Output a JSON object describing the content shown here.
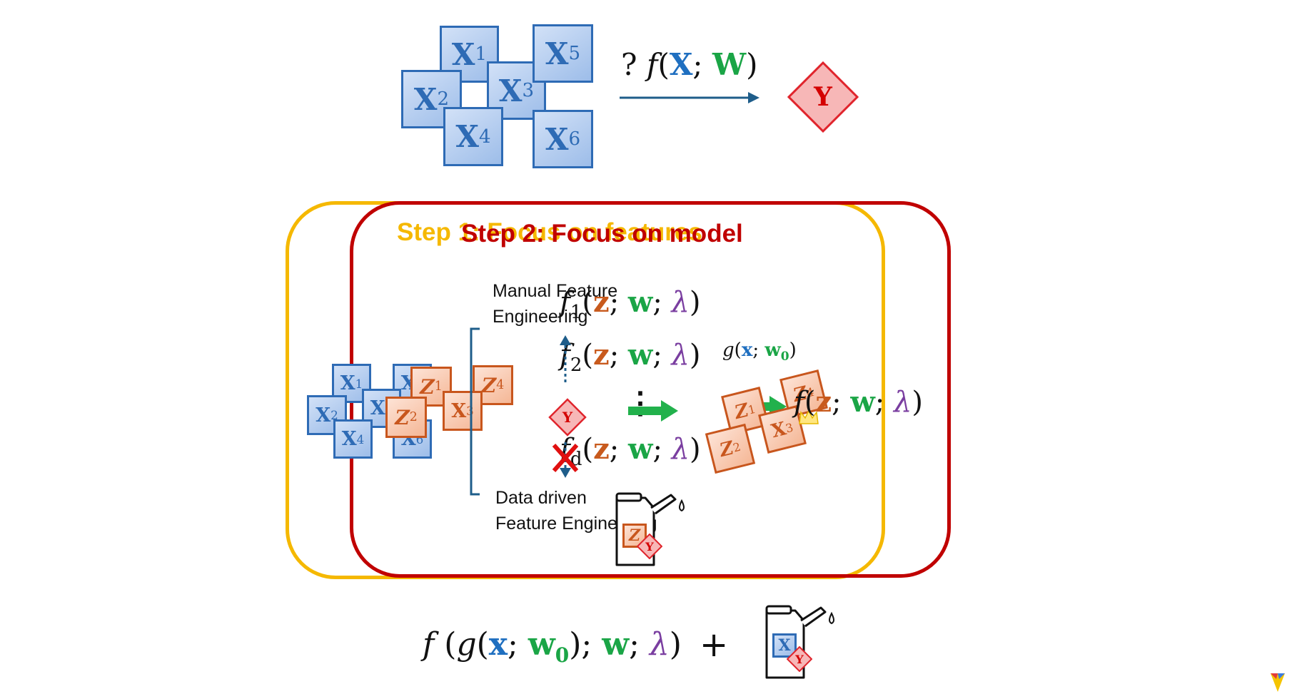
{
  "top": {
    "x_boxes": [
      {
        "var": "X",
        "sub": "1"
      },
      {
        "var": "X",
        "sub": "2"
      },
      {
        "var": "X",
        "sub": "3"
      },
      {
        "var": "X",
        "sub": "4"
      },
      {
        "var": "X",
        "sub": "5"
      },
      {
        "var": "X",
        "sub": "6"
      }
    ],
    "mapping": {
      "q": "?",
      "f": "f",
      "lp": "(",
      "x": "X",
      "semi": ";",
      "w": "W",
      "rp": ")"
    },
    "target": "Y"
  },
  "panel": {
    "step1_title": "Step 1: Focus on features",
    "step2_title": "Step 2: Focus on model",
    "left_x": [
      {
        "var": "X",
        "sub": "1"
      },
      {
        "var": "X",
        "sub": "2"
      },
      {
        "var": "X",
        "sub": "3"
      },
      {
        "var": "X",
        "sub": "4"
      },
      {
        "var": "X",
        "sub": "5"
      },
      {
        "var": "X",
        "sub": "6"
      }
    ],
    "left_z": [
      {
        "var": "Z",
        "sub": "1"
      },
      {
        "var": "Z",
        "sub": "2"
      },
      {
        "var": "X",
        "sub": "3"
      },
      {
        "var": "Z",
        "sub": "4"
      }
    ],
    "manual_label": [
      "Manual Feature",
      "Engineering"
    ],
    "data_label": [
      "Data driven",
      "Feature Engineering"
    ],
    "f1": {
      "f": "f",
      "sub": "1",
      "z": "z",
      "w": "w",
      "lam": "λ"
    },
    "f2": {
      "f": "f",
      "sub": "2",
      "z": "z",
      "w": "w",
      "lam": "λ"
    },
    "fd": {
      "f": "f",
      "sub": "d",
      "z": "z",
      "w": "w",
      "lam": "λ"
    },
    "dots": "⋮",
    "target": "Y",
    "g_label": {
      "g": "g",
      "x": "x",
      "w0": "w",
      "sub": "0"
    },
    "right_z": [
      {
        "var": "Z",
        "sub": "1"
      },
      {
        "var": "Z",
        "sub": "2"
      },
      {
        "var": "X",
        "sub": "3"
      },
      {
        "var": "Z",
        "sub": "4"
      }
    ],
    "f_right": {
      "f": "f",
      "z": "z",
      "w": "w",
      "lam": "λ"
    },
    "can_labels": [
      "Z",
      "Y"
    ]
  },
  "bottom": {
    "formula": {
      "f": "f",
      "g": "g",
      "x": "x",
      "w0": "w",
      "sub": "0",
      "w": "w",
      "lam": "λ"
    },
    "plus": "+",
    "can_labels": [
      "X",
      "Y"
    ]
  },
  "colors": {
    "blue": "#1f6fc0",
    "green": "#1aa546",
    "orange": "#c85a1d",
    "purple": "#7a3ea0",
    "red": "#c00000",
    "yellow": "#f5b800"
  }
}
